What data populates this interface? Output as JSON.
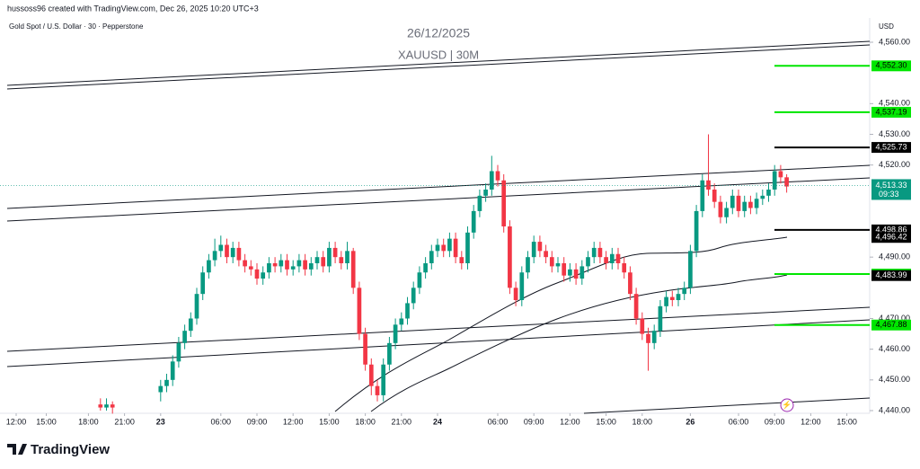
{
  "header": {
    "author": "hussoss96 created with TradingView.com, Dec 26, 2025 10:20 UTC+3",
    "symbol": "Gold Spot / U.S. Dollar · 30 · Pepperstone",
    "watermark_date": "26/12/2025",
    "watermark_symbol": "XAUUSD | 30M",
    "currency": "USD",
    "logo": "TradingView"
  },
  "chart_data": {
    "type": "candlestick",
    "up_color": "#089981",
    "down_color": "#f23645",
    "ylim": [
      4440,
      4560
    ],
    "yticks": [
      {
        "value": 4560,
        "label": "4,560.00"
      },
      {
        "value": 4540,
        "label": "4,540.00"
      },
      {
        "value": 4530,
        "label": "4,530.00"
      },
      {
        "value": 4520,
        "label": "4,520.00"
      },
      {
        "value": 4490,
        "label": "4,490.00"
      },
      {
        "value": 4470,
        "label": "4,470.00"
      },
      {
        "value": 4460,
        "label": "4,460.00"
      },
      {
        "value": 4450,
        "label": "4,450.00"
      },
      {
        "value": 4440,
        "label": "4,440.00"
      }
    ],
    "xticks": [
      {
        "value": 0,
        "label": "12:00"
      },
      {
        "value": 5,
        "label": "15:00"
      },
      {
        "value": 12,
        "label": "18:00"
      },
      {
        "value": 18,
        "label": "21:00"
      },
      {
        "value": 24,
        "label": "23"
      },
      {
        "value": 34,
        "label": "06:00"
      },
      {
        "value": 40,
        "label": "09:00"
      },
      {
        "value": 46,
        "label": "12:00"
      },
      {
        "value": 52,
        "label": "15:00"
      },
      {
        "value": 58,
        "label": "18:00"
      },
      {
        "value": 64,
        "label": "21:00"
      },
      {
        "value": 70,
        "label": "24"
      },
      {
        "value": 80,
        "label": "06:00"
      },
      {
        "value": 86,
        "label": "09:00"
      },
      {
        "value": 92,
        "label": "12:00"
      },
      {
        "value": 98,
        "label": "15:00"
      },
      {
        "value": 104,
        "label": "18:00"
      },
      {
        "value": 112,
        "label": "26"
      },
      {
        "value": 120,
        "label": "06:00"
      },
      {
        "value": 126,
        "label": "09:00"
      },
      {
        "value": 132,
        "label": "12:00"
      },
      {
        "value": 138,
        "label": "15:00"
      }
    ],
    "xlim": [
      0,
      141
    ],
    "x": [
      14,
      15,
      16,
      24,
      25,
      26,
      27,
      28,
      29,
      30,
      31,
      32,
      33,
      34,
      35,
      36,
      37,
      38,
      39,
      40,
      41,
      42,
      43,
      44,
      45,
      46,
      47,
      48,
      49,
      50,
      51,
      52,
      53,
      54,
      55,
      56,
      57,
      58,
      59,
      60,
      61,
      62,
      63,
      64,
      65,
      66,
      67,
      68,
      69,
      70,
      71,
      72,
      73,
      74,
      75,
      76,
      77,
      78,
      79,
      80,
      81,
      82,
      83,
      84,
      85,
      86,
      87,
      88,
      89,
      90,
      91,
      92,
      93,
      94,
      95,
      96,
      97,
      98,
      99,
      100,
      101,
      102,
      103,
      104,
      105,
      106,
      107,
      108,
      109,
      110,
      111,
      112,
      113,
      114,
      115,
      116,
      117,
      118,
      119,
      120,
      121,
      122,
      123,
      124,
      125,
      126,
      127,
      128
    ],
    "open": [
      4442,
      4441,
      4442,
      4446,
      4448,
      4450,
      4456,
      4462,
      4466,
      4470,
      4478,
      4485,
      4489,
      4492,
      4494,
      4490,
      4493,
      4489,
      4487,
      4486,
      4483,
      4485,
      4488,
      4487,
      4489,
      4486,
      4487,
      4489,
      4486,
      4488,
      4490,
      4487,
      4493,
      4490,
      4488,
      4492,
      4480,
      4465,
      4455,
      4448,
      4445,
      4455,
      4462,
      4468,
      4470,
      4475,
      4480,
      4485,
      4488,
      4492,
      4494,
      4492,
      4496,
      4490,
      4488,
      4498,
      4505,
      4510,
      4512,
      4518,
      4515,
      4500,
      4480,
      4476,
      4485,
      4490,
      4495,
      4492,
      4490,
      4487,
      4488,
      4484,
      4486,
      4483,
      4487,
      4490,
      4493,
      4490,
      4488,
      4491,
      4488,
      4485,
      4478,
      4470,
      4465,
      4462,
      4466,
      4474,
      4477,
      4476,
      4478,
      4480,
      4492,
      4505,
      4515,
      4512,
      4508,
      4503,
      4506,
      4510,
      4505,
      4508,
      4506,
      4509,
      4510,
      4512,
      4518,
      4516
    ],
    "high": [
      4444,
      4444,
      4443,
      4450,
      4452,
      4458,
      4464,
      4468,
      4472,
      4480,
      4487,
      4491,
      4496,
      4497,
      4496,
      4495,
      4495,
      4491,
      4489,
      4488,
      4487,
      4490,
      4490,
      4491,
      4491,
      4489,
      4491,
      4491,
      4490,
      4492,
      4492,
      4495,
      4495,
      4492,
      4495,
      4493,
      4482,
      4467,
      4457,
      4450,
      4457,
      4464,
      4470,
      4472,
      4477,
      4482,
      4487,
      4490,
      4494,
      4496,
      4496,
      4498,
      4498,
      4492,
      4500,
      4507,
      4512,
      4514,
      4523,
      4520,
      4517,
      4502,
      4482,
      4487,
      4492,
      4497,
      4497,
      4494,
      4492,
      4490,
      4490,
      4488,
      4488,
      4489,
      4492,
      4495,
      4495,
      4492,
      4493,
      4493,
      4490,
      4487,
      4480,
      4472,
      4467,
      4468,
      4476,
      4479,
      4479,
      4480,
      4482,
      4494,
      4507,
      4517,
      4530,
      4514,
      4510,
      4508,
      4512,
      4512,
      4510,
      4510,
      4511,
      4512,
      4514,
      4520,
      4520,
      4517
    ],
    "low": [
      4440,
      4440,
      4439,
      4443,
      4446,
      4448,
      4454,
      4460,
      4464,
      4468,
      4476,
      4483,
      4487,
      4490,
      4488,
      4488,
      4487,
      4485,
      4484,
      4481,
      4481,
      4483,
      4485,
      4485,
      4484,
      4484,
      4485,
      4484,
      4484,
      4486,
      4485,
      4485,
      4488,
      4486,
      4486,
      4478,
      4463,
      4453,
      4445,
      4443,
      4443,
      4453,
      4460,
      4466,
      4468,
      4473,
      4478,
      4483,
      4486,
      4490,
      4490,
      4490,
      4488,
      4486,
      4486,
      4496,
      4503,
      4508,
      4510,
      4513,
      4498,
      4478,
      4474,
      4474,
      4483,
      4488,
      4490,
      4488,
      4485,
      4485,
      4482,
      4482,
      4481,
      4481,
      4485,
      4488,
      4488,
      4486,
      4486,
      4486,
      4483,
      4476,
      4468,
      4463,
      4453,
      4460,
      4464,
      4472,
      4474,
      4474,
      4476,
      4478,
      4490,
      4503,
      4510,
      4506,
      4501,
      4501,
      4504,
      4503,
      4503,
      4504,
      4504,
      4507,
      4508,
      4510,
      4514,
      4511
    ],
    "close": [
      4441,
      4442,
      4441,
      4448,
      4450,
      4456,
      4462,
      4466,
      4470,
      4478,
      4485,
      4489,
      4492,
      4494,
      4490,
      4493,
      4489,
      4487,
      4486,
      4483,
      4485,
      4488,
      4487,
      4489,
      4486,
      4487,
      4489,
      4486,
      4488,
      4490,
      4487,
      4493,
      4490,
      4488,
      4492,
      4480,
      4465,
      4455,
      4448,
      4445,
      4455,
      4462,
      4468,
      4470,
      4475,
      4480,
      4485,
      4488,
      4492,
      4494,
      4492,
      4496,
      4490,
      4488,
      4498,
      4505,
      4510,
      4512,
      4518,
      4515,
      4500,
      4480,
      4476,
      4485,
      4490,
      4495,
      4492,
      4490,
      4487,
      4488,
      4484,
      4486,
      4483,
      4487,
      4490,
      4493,
      4490,
      4488,
      4491,
      4488,
      4485,
      4478,
      4470,
      4465,
      4462,
      4466,
      4474,
      4477,
      4476,
      4478,
      4480,
      4492,
      4505,
      4515,
      4512,
      4508,
      4503,
      4506,
      4510,
      4505,
      4508,
      4506,
      4509,
      4510,
      4512,
      4518,
      4516,
      4513
    ],
    "levels": [
      {
        "value": 4552.3,
        "label": "4,552.30",
        "color": "#00e600",
        "line": true
      },
      {
        "value": 4537.19,
        "label": "4,537.19",
        "color": "#00e600",
        "line": true
      },
      {
        "value": 4525.73,
        "label": "4,525.73",
        "color": "#000000",
        "line": true
      },
      {
        "value": 4498.86,
        "label": "4,498.86",
        "color": "#000000",
        "line": true
      },
      {
        "value": 4496.42,
        "label": "4,496.42",
        "color": "#000000",
        "line": false
      },
      {
        "value": 4484.47,
        "label": "4,484.47",
        "color": "#00e600",
        "line": true
      },
      {
        "value": 4483.99,
        "label": "4,483.99",
        "color": "#000000",
        "line": false
      },
      {
        "value": 4467.88,
        "label": "4,467.88",
        "color": "#00e600",
        "line": true
      }
    ],
    "last_price": {
      "value": 4513.33,
      "label": "4,513.33",
      "countdown": "09:33",
      "color": "#089981"
    }
  }
}
